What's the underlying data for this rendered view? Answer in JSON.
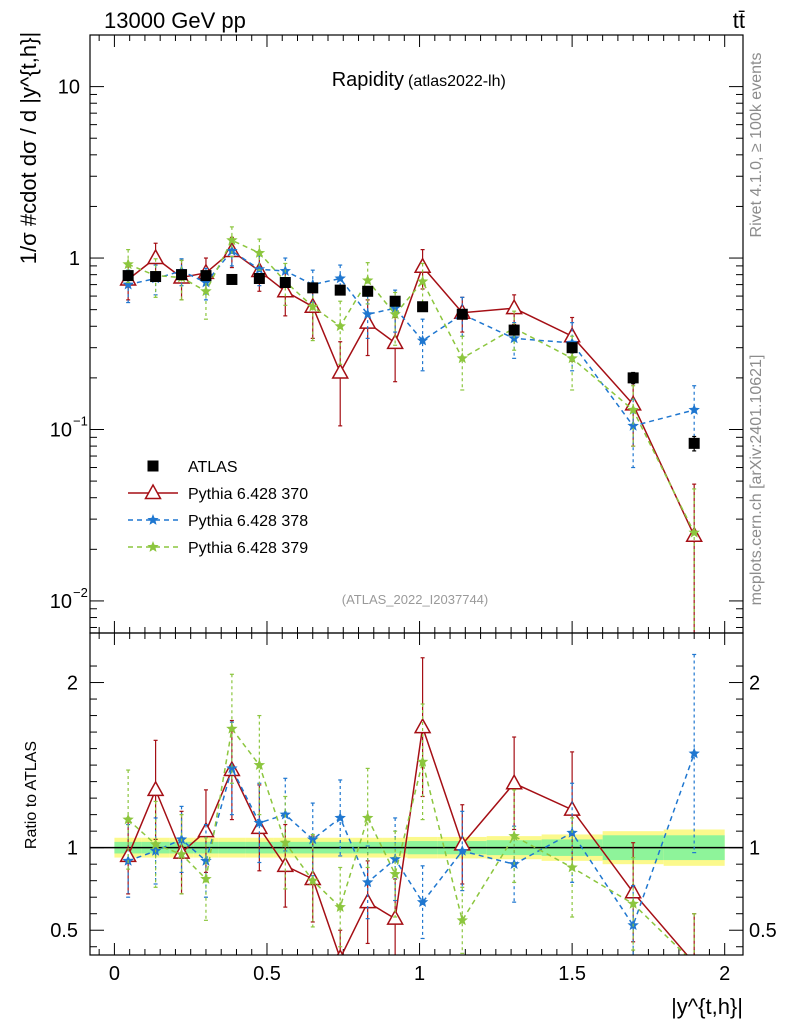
{
  "header": {
    "left_title": "13000 GeV pp",
    "right_title": "tt̄",
    "side_rivet": "Rivet 4.1.0, ≥ 100k events",
    "side_mcplots": "mcplots.cern.ch [arXiv:2401.10621]"
  },
  "chart_data": {
    "type": "scatter",
    "title": "Rapidity",
    "subtitle": "(atlas2022-lh)",
    "watermark": "(ATLAS_2022_I2037744)",
    "xlabel": "|y^{t,h}|",
    "ylabel": "1/σ #cdot dσ / d |y^{t,h}|",
    "ratio_ylabel": "Ratio to ATLAS",
    "xlim": [
      -0.08,
      2.06
    ],
    "ylim": [
      0.0065,
      20
    ],
    "ratio_ylim": [
      0.35,
      2.3
    ],
    "x_ticks": [
      {
        "value": 0,
        "label": "0"
      },
      {
        "value": 0.5,
        "label": "0.5"
      },
      {
        "value": 1,
        "label": "1"
      },
      {
        "value": 1.5,
        "label": "1.5"
      },
      {
        "value": 2,
        "label": "2"
      }
    ],
    "y_ticks": [
      {
        "value": 0.01,
        "base": "10",
        "exp": "−2"
      },
      {
        "value": 0.1,
        "base": "10",
        "exp": "−1"
      },
      {
        "value": 1,
        "base": "1",
        "exp": ""
      },
      {
        "value": 10,
        "base": "10",
        "exp": ""
      }
    ],
    "ratio_ticks": [
      {
        "value": 0.5,
        "label": "0.5"
      },
      {
        "value": 1,
        "label": "1"
      },
      {
        "value": 2,
        "label": "2"
      }
    ],
    "x": [
      0.045,
      0.135,
      0.22,
      0.3,
      0.385,
      0.475,
      0.56,
      0.65,
      0.74,
      0.83,
      0.92,
      1.01,
      1.14,
      1.31,
      1.5,
      1.7,
      1.9
    ],
    "x_edges": [
      0,
      0.09,
      0.18,
      0.26,
      0.34,
      0.43,
      0.52,
      0.6,
      0.7,
      0.78,
      0.88,
      0.96,
      1.06,
      1.22,
      1.4,
      1.6,
      1.8,
      2.0
    ],
    "band_inner": [
      0.035,
      0.035,
      0.035,
      0.035,
      0.035,
      0.035,
      0.035,
      0.035,
      0.035,
      0.035,
      0.035,
      0.04,
      0.04,
      0.045,
      0.05,
      0.075,
      0.075
    ],
    "band_outer": [
      0.06,
      0.06,
      0.06,
      0.06,
      0.06,
      0.06,
      0.06,
      0.06,
      0.06,
      0.06,
      0.06,
      0.065,
      0.065,
      0.07,
      0.08,
      0.1,
      0.11
    ],
    "legend": {
      "position": "middle-left"
    },
    "series": [
      {
        "name": "ATLAS",
        "marker": "square",
        "color": "#000000",
        "values": [
          0.79,
          0.78,
          0.8,
          0.79,
          0.75,
          0.76,
          0.72,
          0.67,
          0.65,
          0.64,
          0.56,
          0.52,
          0.47,
          0.38,
          0.3,
          0.2,
          0.083
        ],
        "err": [
          0.03,
          0.03,
          0.03,
          0.03,
          0.03,
          0.03,
          0.03,
          0.03,
          0.03,
          0.03,
          0.03,
          0.03,
          0.02,
          0.02,
          0.02,
          0.015,
          0.008
        ]
      },
      {
        "name": "Pythia 6.428 370",
        "marker": "triangle-open",
        "color": "#a50f15",
        "dash": "",
        "values": [
          0.75,
          1.0,
          0.77,
          0.82,
          1.1,
          0.84,
          0.64,
          0.52,
          0.215,
          0.42,
          0.32,
          0.89,
          0.48,
          0.51,
          0.35,
          0.14,
          0.024
        ],
        "err": [
          0.18,
          0.22,
          0.2,
          0.18,
          0.22,
          0.2,
          0.18,
          0.18,
          0.11,
          0.15,
          0.13,
          0.23,
          0.11,
          0.1,
          0.1,
          0.06,
          0.024
        ],
        "ratio": [
          0.95,
          1.35,
          0.97,
          1.1,
          1.47,
          1.12,
          0.89,
          0.81,
          0.33,
          0.67,
          0.57,
          1.73,
          1.02,
          1.39,
          1.23,
          0.73,
          0.3
        ],
        "ratio_err": [
          0.23,
          0.3,
          0.25,
          0.25,
          0.3,
          0.26,
          0.25,
          0.26,
          0.17,
          0.25,
          0.24,
          0.42,
          0.24,
          0.28,
          0.35,
          0.3,
          0.3
        ]
      },
      {
        "name": "Pythia 6.428 378",
        "marker": "star",
        "color": "#1f77d0",
        "dash": "5,4",
        "values": [
          0.7,
          0.76,
          0.84,
          0.72,
          1.1,
          0.86,
          0.84,
          0.7,
          0.76,
          0.47,
          0.51,
          0.33,
          0.47,
          0.34,
          0.32,
          0.105,
          0.13
        ],
        "err": [
          0.15,
          0.15,
          0.15,
          0.15,
          0.2,
          0.17,
          0.16,
          0.15,
          0.15,
          0.13,
          0.14,
          0.11,
          0.12,
          0.08,
          0.1,
          0.045,
          0.05
        ],
        "ratio": [
          0.92,
          0.98,
          1.05,
          0.92,
          1.48,
          1.15,
          1.2,
          1.05,
          1.18,
          0.79,
          0.93,
          0.67,
          0.98,
          0.9,
          1.09,
          0.53,
          1.57
        ],
        "ratio_err": [
          0.22,
          0.2,
          0.2,
          0.22,
          0.28,
          0.24,
          0.22,
          0.22,
          0.23,
          0.22,
          0.25,
          0.22,
          0.24,
          0.23,
          0.3,
          0.24,
          0.6
        ]
      },
      {
        "name": "Pythia 6.428 379",
        "marker": "star",
        "color": "#8cc63e",
        "dash": "5,4",
        "values": [
          0.92,
          0.79,
          0.77,
          0.64,
          1.27,
          1.07,
          0.73,
          0.52,
          0.4,
          0.74,
          0.47,
          0.73,
          0.26,
          0.39,
          0.26,
          0.13,
          0.025
        ],
        "err": [
          0.2,
          0.2,
          0.2,
          0.2,
          0.25,
          0.22,
          0.2,
          0.19,
          0.16,
          0.2,
          0.16,
          0.2,
          0.09,
          0.1,
          0.09,
          0.05,
          0.02
        ],
        "ratio": [
          1.17,
          1.02,
          0.96,
          0.81,
          1.72,
          1.5,
          1.03,
          0.8,
          0.64,
          1.18,
          0.84,
          1.52,
          0.56,
          1.07,
          0.88,
          0.66,
          0.3
        ],
        "ratio_err": [
          0.3,
          0.26,
          0.24,
          0.25,
          0.33,
          0.3,
          0.28,
          0.28,
          0.24,
          0.3,
          0.26,
          0.35,
          0.2,
          0.28,
          0.3,
          0.28,
          0.3
        ]
      }
    ]
  }
}
